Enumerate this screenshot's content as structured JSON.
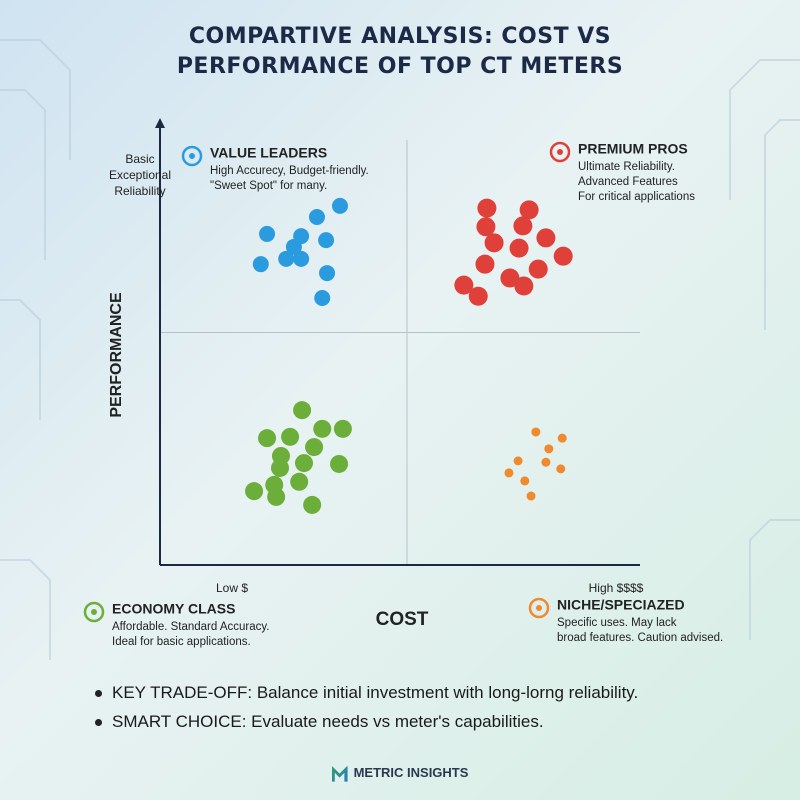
{
  "chart_data": {
    "type": "scatter",
    "title": "COMPARTIVE ANALYSIS: COST VS PERFORMANCE OF TOP CT METERS",
    "x_label": "COST",
    "y_label": "PERFORMANCE",
    "x_end_labels": [
      "Low $",
      "High $$$$"
    ],
    "y_end_label": "Basic Exceptional Reliability",
    "xlim": [
      0,
      100
    ],
    "ylim": [
      0,
      100
    ],
    "series": [
      {
        "name": "VALUE LEADERS",
        "color": "#2b9be0",
        "description": [
          "High Accurecy, Budget-friendly.",
          "\"Sweet Spot\" for many."
        ],
        "x": [
          37.5,
          32.7,
          22.3,
          29.4,
          34.6,
          27.9,
          21.0,
          26.3,
          29.4,
          34.8,
          33.8
        ],
        "values": [
          80.7,
          78.2,
          74.4,
          73.9,
          73.0,
          71.5,
          67.6,
          68.8,
          68.8,
          65.6,
          60.0
        ]
      },
      {
        "name": "PREMIUM PROS",
        "color": "#e0403a",
        "description": [
          "Ultimate Reliability.",
          "Advanced Features",
          "For critical applications"
        ],
        "x": [
          68.1,
          76.9,
          67.9,
          75.6,
          69.6,
          80.4,
          74.8,
          84.0,
          67.7,
          78.8,
          72.9,
          63.3,
          75.8,
          66.3
        ],
        "values": [
          80.2,
          79.8,
          76.0,
          76.2,
          72.4,
          73.5,
          71.2,
          69.4,
          67.6,
          66.5,
          64.5,
          62.9,
          62.7,
          60.4
        ]
      },
      {
        "name": "ECONOMY CLASS",
        "color": "#6cae3a",
        "description": [
          "Affordable. Standard Accuracy.",
          "Ideal for basic applications."
        ],
        "x": [
          29.6,
          33.8,
          22.3,
          27.1,
          38.1,
          32.1,
          25.2,
          30.0,
          25.0,
          37.3,
          29.0,
          23.8,
          19.6,
          24.2,
          31.7
        ],
        "values": [
          34.8,
          30.6,
          28.5,
          28.8,
          30.6,
          26.5,
          24.5,
          22.9,
          21.8,
          22.7,
          18.7,
          18.0,
          16.6,
          15.3,
          13.5
        ]
      },
      {
        "name": "NICHE/SPECIAZED",
        "color": "#ef8a2e",
        "description": [
          "Specific uses. May lack",
          "broad features. Caution advised."
        ],
        "x": [
          78.3,
          83.8,
          81.0,
          74.6,
          80.4,
          83.5,
          72.7,
          76.0,
          77.3
        ],
        "values": [
          29.9,
          28.5,
          26.1,
          23.4,
          23.1,
          21.6,
          20.7,
          18.9,
          15.5
        ]
      }
    ]
  },
  "notes": [
    "KEY TRADE-OFF: Balance initial investment with long-lorng reliability.",
    "SMART CHOICE: Evaluate needs vs meter's capabilities."
  ],
  "footer": {
    "brand": "METRIC INSIGHTS"
  }
}
